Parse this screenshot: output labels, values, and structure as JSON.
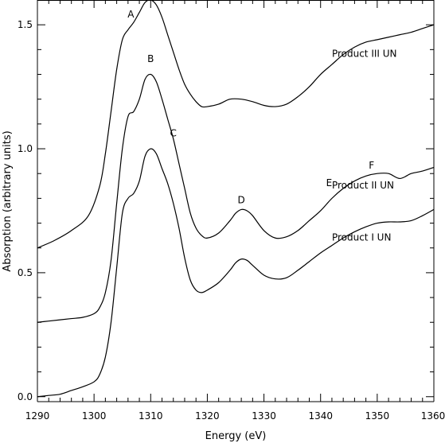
{
  "chart_data": {
    "type": "line",
    "xlabel": "Energy (eV)",
    "ylabel": "Absorption (arbitrary units)",
    "xlim": [
      1290,
      1360
    ],
    "ylim": [
      -0.02,
      1.6
    ],
    "x_ticks": [
      1290,
      1300,
      1310,
      1320,
      1330,
      1340,
      1350,
      1360
    ],
    "x_tick_labels": [
      "1290",
      "1300",
      "1310",
      "1320",
      "1330",
      "1340",
      "1350",
      "1360"
    ],
    "y_ticks": [
      0.0,
      0.5,
      1.0,
      1.5
    ],
    "y_tick_labels": [
      "0.0",
      "0.5",
      "1.0",
      "1.5"
    ],
    "grid": false,
    "legend": "none",
    "series": [
      {
        "name": "Product III UN",
        "x": [
          1290,
          1293,
          1296,
          1299,
          1301,
          1302,
          1303,
          1304,
          1305,
          1306,
          1307,
          1308,
          1309,
          1310,
          1311,
          1312,
          1313,
          1314,
          1315,
          1316,
          1317,
          1318,
          1319,
          1320,
          1322,
          1324,
          1326,
          1328,
          1330,
          1332,
          1334,
          1336,
          1338,
          1340,
          1342,
          1344,
          1346,
          1348,
          1350,
          1352,
          1354,
          1356,
          1358,
          1360
        ],
        "y": [
          0.6,
          0.63,
          0.67,
          0.73,
          0.85,
          0.98,
          1.15,
          1.32,
          1.44,
          1.48,
          1.51,
          1.55,
          1.59,
          1.6,
          1.58,
          1.53,
          1.46,
          1.39,
          1.32,
          1.26,
          1.22,
          1.19,
          1.17,
          1.17,
          1.18,
          1.2,
          1.2,
          1.19,
          1.175,
          1.17,
          1.18,
          1.21,
          1.25,
          1.3,
          1.34,
          1.38,
          1.41,
          1.43,
          1.44,
          1.45,
          1.46,
          1.47,
          1.485,
          1.5
        ]
      },
      {
        "name": "Product II UN",
        "x": [
          1290,
          1292,
          1294,
          1296,
          1298,
          1300,
          1301,
          1302,
          1303,
          1304,
          1305,
          1306,
          1307,
          1308,
          1309,
          1310,
          1311,
          1312,
          1313,
          1314,
          1315,
          1316,
          1317,
          1318,
          1319,
          1320,
          1322,
          1324,
          1325,
          1326,
          1327,
          1328,
          1330,
          1332,
          1334,
          1336,
          1338,
          1340,
          1342,
          1344,
          1346,
          1348,
          1350,
          1352,
          1354,
          1356,
          1358,
          1360
        ],
        "y": [
          0.3,
          0.305,
          0.31,
          0.315,
          0.32,
          0.335,
          0.36,
          0.42,
          0.55,
          0.78,
          1.0,
          1.13,
          1.15,
          1.2,
          1.28,
          1.3,
          1.27,
          1.2,
          1.12,
          1.04,
          0.94,
          0.84,
          0.74,
          0.68,
          0.65,
          0.64,
          0.66,
          0.71,
          0.74,
          0.755,
          0.75,
          0.73,
          0.67,
          0.64,
          0.645,
          0.67,
          0.71,
          0.75,
          0.8,
          0.84,
          0.87,
          0.89,
          0.9,
          0.9,
          0.88,
          0.9,
          0.91,
          0.925
        ]
      },
      {
        "name": "Product I UN",
        "x": [
          1290,
          1292,
          1294,
          1296,
          1298,
          1300,
          1301,
          1302,
          1303,
          1304,
          1305,
          1306,
          1307,
          1308,
          1309,
          1310,
          1311,
          1312,
          1313,
          1314,
          1315,
          1316,
          1317,
          1318,
          1319,
          1320,
          1322,
          1324,
          1325,
          1326,
          1327,
          1328,
          1330,
          1332,
          1334,
          1336,
          1338,
          1340,
          1342,
          1344,
          1346,
          1348,
          1350,
          1352,
          1354,
          1356,
          1358,
          1360
        ],
        "y": [
          0.0,
          0.005,
          0.01,
          0.025,
          0.04,
          0.06,
          0.09,
          0.16,
          0.3,
          0.52,
          0.74,
          0.8,
          0.82,
          0.87,
          0.97,
          1.0,
          0.98,
          0.92,
          0.86,
          0.78,
          0.68,
          0.56,
          0.47,
          0.43,
          0.42,
          0.43,
          0.46,
          0.51,
          0.54,
          0.555,
          0.55,
          0.53,
          0.49,
          0.475,
          0.48,
          0.51,
          0.545,
          0.58,
          0.61,
          0.64,
          0.665,
          0.685,
          0.7,
          0.705,
          0.705,
          0.71,
          0.73,
          0.755
        ]
      }
    ],
    "series_labels": [
      {
        "text": "Product III UN",
        "x": 1342,
        "y": 1.37
      },
      {
        "text": "Product II UN",
        "x": 1342,
        "y": 0.84
      },
      {
        "text": "Product I UN",
        "x": 1342,
        "y": 0.63
      }
    ],
    "annotations": [
      {
        "text": "A",
        "x": 1306.5,
        "y": 1.53
      },
      {
        "text": "B",
        "x": 1310,
        "y": 1.35
      },
      {
        "text": "C",
        "x": 1314,
        "y": 1.05
      },
      {
        "text": "D",
        "x": 1326,
        "y": 0.78
      },
      {
        "text": "E",
        "x": 1341.5,
        "y": 0.85
      },
      {
        "text": "F",
        "x": 1349,
        "y": 0.92
      }
    ]
  }
}
